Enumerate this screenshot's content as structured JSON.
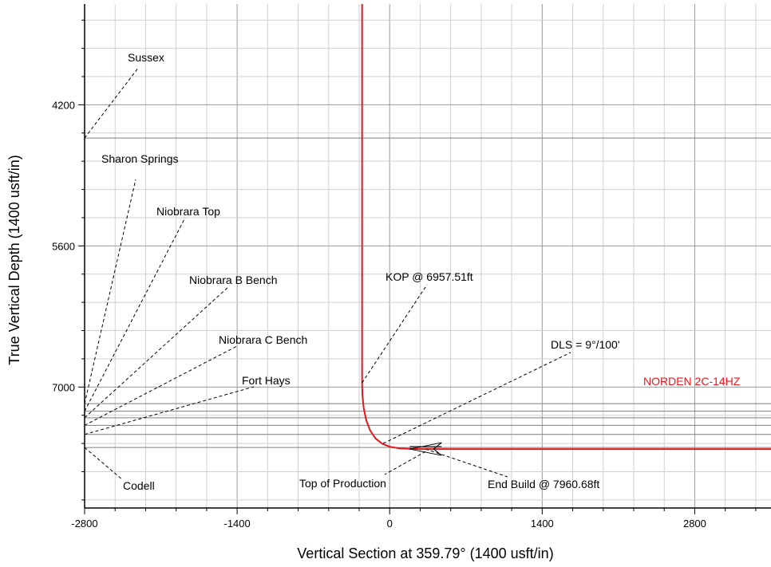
{
  "chart_data": {
    "type": "line",
    "xlabel": "Vertical Section at 359.79° (1400 usft/in)",
    "ylabel": "True Vertical Depth (1400 usft/in)",
    "xlim": [
      -2800,
      3500
    ],
    "ylim": [
      3200,
      8200
    ],
    "y_inverted": true,
    "x_ticks": [
      -2800,
      -1400,
      0,
      1400,
      2800
    ],
    "y_ticks": [
      4200,
      5600,
      7000
    ],
    "grid": true,
    "series": [
      {
        "name": "NORDEN 2C-14HZ",
        "color": "#e8161b",
        "x": [
          -253,
          -253,
          -253,
          -250,
          -238,
          -215,
          -180,
          -130,
          -65,
          10,
          100,
          200,
          300,
          700,
          1400,
          2100,
          2800,
          3500
        ],
        "y": [
          3200,
          5000,
          6957.51,
          7080,
          7210,
          7330,
          7430,
          7510,
          7565,
          7595,
          7610,
          7614,
          7615,
          7615,
          7615,
          7615,
          7615,
          7615
        ]
      }
    ],
    "formation_tops": [
      {
        "name": "Sussex",
        "tvd": 4530
      },
      {
        "name": "Sharon Springs",
        "tvd": 7165
      },
      {
        "name": "Niobrara Top",
        "tvd": 7240
      },
      {
        "name": "Niobrara B Bench",
        "tvd": 7305
      },
      {
        "name": "Niobrara C Bench",
        "tvd": 7380
      },
      {
        "name": "Fort Hays",
        "tvd": 7470
      },
      {
        "name": "Codell",
        "tvd": 7600
      }
    ],
    "annotations": [
      {
        "text": "KOP @ 6957.51ft",
        "x": -253,
        "y": 6957.51
      },
      {
        "text": "DLS = 9°/100'",
        "x": -60,
        "y": 7560
      },
      {
        "text": "Top of Production",
        "x": 330,
        "y": 7640
      },
      {
        "text": "End Build @ 7960.68ft",
        "x": 330,
        "y": 7615
      }
    ]
  }
}
